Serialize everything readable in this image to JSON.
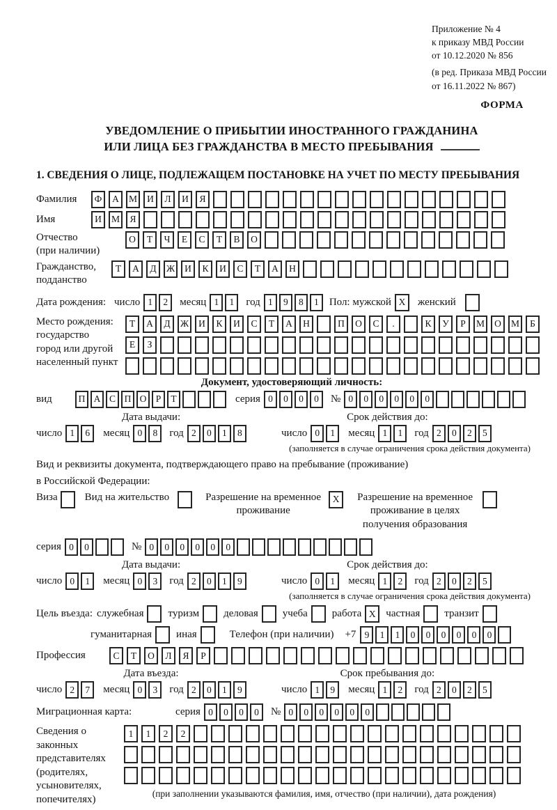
{
  "meta": {
    "appendix_line1": "Приложение № 4",
    "appendix_line2": "к приказу МВД России",
    "appendix_line3": "от 10.12.2020 № 856",
    "appendix_line4": "(в ред. Приказа МВД России",
    "appendix_line5": "от 16.11.2022 № 867)",
    "form_word": "ФОРМА"
  },
  "title": {
    "line1": "УВЕДОМЛЕНИЕ О ПРИБЫТИИ ИНОСТРАННОГО ГРАЖДАНИНА",
    "line2": "ИЛИ ЛИЦА БЕЗ ГРАЖДАНСТВА В МЕСТО ПРЕБЫВАНИЯ",
    "section1": "1. СВЕДЕНИЯ О ЛИЦЕ, ПОДЛЕЖАЩЕМ ПОСТАНОВКЕ НА УЧЕТ ПО МЕСТУ ПРЕБЫВАНИЯ"
  },
  "labels": {
    "day": "число",
    "month": "месяц",
    "year": "год",
    "series": "серия",
    "number": "№",
    "issue_date": "Дата выдачи:",
    "valid_until": "Срок действия до:",
    "restriction_note": "(заполняется в случае ограничения срока действия документа)"
  },
  "person": {
    "surname": {
      "label": "Фамилия",
      "value": "ФАМИЛИЯ",
      "count": 24
    },
    "firstname": {
      "label": "Имя",
      "value": "ИМЯ",
      "count": 24
    },
    "patronymic": {
      "label_line1": "Отчество",
      "label_line2": "(при наличии)",
      "value": "ОТЧЕСТВО",
      "count": 22
    },
    "citizenship": {
      "label_line1": "Гражданство,",
      "label_line2": "подданство",
      "value": "ТАДЖИКИСТАН",
      "count": 23
    },
    "birth_date": {
      "label": "Дата рождения:",
      "day": {
        "value": "12",
        "count": 2
      },
      "month": {
        "value": "11",
        "count": 2
      },
      "year": {
        "value": "1981",
        "count": 4
      }
    },
    "sex": {
      "label": "Пол: мужской",
      "male": {
        "checked": "X"
      },
      "female_label": "женский",
      "female": {
        "checked": ""
      }
    },
    "birth_place": {
      "label_line1": "Место рождения:",
      "label_line2": "государство",
      "label_line3": "город или другой",
      "label_line4": "населенный пункт",
      "row1": {
        "value": "ТАДЖИКИСТАН ПОС. КУРМОМБ",
        "count": 24
      },
      "row2": {
        "value": "ЕЗ",
        "count": 24
      },
      "row3": {
        "value": "",
        "count": 24
      }
    }
  },
  "identity_doc": {
    "heading": "Документ, удостоверяющий личность:",
    "kind_label": "вид",
    "kind": {
      "value": "ПАСПОРТ",
      "count": 10
    },
    "series": {
      "value": "0000",
      "count": 4
    },
    "number": {
      "value": "000000",
      "count": 12
    },
    "issue": {
      "day": {
        "value": "16",
        "count": 2
      },
      "month": {
        "value": "08",
        "count": 2
      },
      "year": {
        "value": "2018",
        "count": 4
      }
    },
    "valid": {
      "day": {
        "value": "01",
        "count": 2
      },
      "month": {
        "value": "11",
        "count": 2
      },
      "year": {
        "value": "2025",
        "count": 4
      }
    }
  },
  "stay_doc": {
    "intro_line1": "Вид и реквизиты документа, подтверждающего право на пребывание (проживание)",
    "intro_line2": "в Российской Федерации:",
    "options": [
      {
        "label": "Виза",
        "checked": ""
      },
      {
        "label": "Вид на жительство",
        "checked": ""
      },
      {
        "label": "Разрешение на временное проживание",
        "checked": "X"
      },
      {
        "label": "Разрешение на временное проживание в целях получения образования",
        "checked": ""
      }
    ],
    "series": {
      "value": "00",
      "count": 4
    },
    "number": {
      "value": "000000",
      "count": 15
    },
    "issue": {
      "day": {
        "value": "01",
        "count": 2
      },
      "month": {
        "value": "03",
        "count": 2
      },
      "year": {
        "value": "2019",
        "count": 4
      }
    },
    "valid": {
      "day": {
        "value": "01",
        "count": 2
      },
      "month": {
        "value": "12",
        "count": 2
      },
      "year": {
        "value": "2025",
        "count": 4
      }
    }
  },
  "visit": {
    "purpose_label": "Цель въезда:",
    "purposes_row1": [
      {
        "label": "служебная",
        "checked": ""
      },
      {
        "label": "туризм",
        "checked": ""
      },
      {
        "label": "деловая",
        "checked": ""
      },
      {
        "label": "учеба",
        "checked": ""
      },
      {
        "label": "работа",
        "checked": "X"
      },
      {
        "label": "частная",
        "checked": ""
      },
      {
        "label": "транзит",
        "checked": ""
      }
    ],
    "purposes_row2": [
      {
        "label": "гуманитарная",
        "checked": ""
      },
      {
        "label": "иная",
        "checked": ""
      }
    ],
    "phone_label": "Телефон (при наличии)",
    "phone_prefix": "+7",
    "phone": {
      "value": "911000000",
      "count": 10
    },
    "profession": {
      "label": "Профессия",
      "value": "СТОЛЯР",
      "count": 24
    },
    "entry_header": "Дата въезда:",
    "entry": {
      "day": {
        "value": "27",
        "count": 2
      },
      "month": {
        "value": "03",
        "count": 2
      },
      "year": {
        "value": "2019",
        "count": 4
      }
    },
    "stay_until_header": "Срок пребывания до:",
    "stay_until": {
      "day": {
        "value": "19",
        "count": 2
      },
      "month": {
        "value": "12",
        "count": 2
      },
      "year": {
        "value": "2025",
        "count": 4
      }
    },
    "migration_card": {
      "label": "Миграционная карта:",
      "series": {
        "value": "0000",
        "count": 4
      },
      "number": {
        "value": "000000",
        "count": 11
      }
    }
  },
  "representatives": {
    "label_line1": "Сведения о",
    "label_line2": "законных",
    "label_line3": "представителях",
    "label_line4": "(родителях,",
    "label_line5": "усыновителях,",
    "label_line6": "попечителях)",
    "row1": {
      "value": "1122",
      "count": 23
    },
    "row2": {
      "value": "",
      "count": 23
    },
    "row3": {
      "value": "",
      "count": 23
    },
    "note": "(при заполнении указываются фамилия, имя, отчество (при наличии), дата рождения)"
  }
}
